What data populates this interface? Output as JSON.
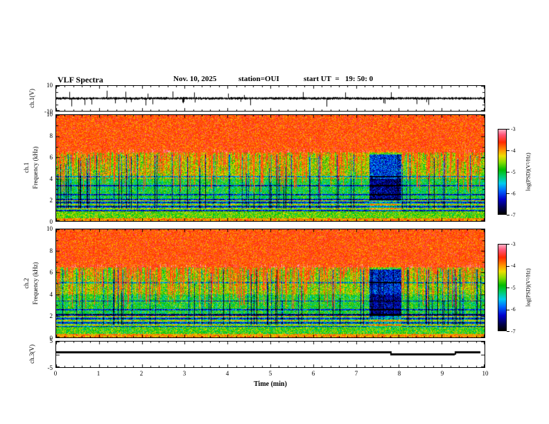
{
  "header": {
    "title": "VLF Spectra",
    "date": "Nov. 10, 2025",
    "station": "station=OUI",
    "start_ut": "start UT  =   19: 50: 0"
  },
  "x_axis": {
    "label": "Time (min)",
    "range": [
      0,
      10
    ],
    "ticks": [
      0,
      1,
      2,
      3,
      4,
      5,
      6,
      7,
      8,
      9,
      10
    ]
  },
  "colorbar": {
    "label": "log(PSD)(V²/Hz)",
    "range": [
      -7,
      -3
    ],
    "ticks": [
      -3,
      -4,
      -5,
      -6,
      -7
    ],
    "stops": [
      {
        "v": -7.0,
        "c": "#000000"
      },
      {
        "v": -6.7,
        "c": "#00004d"
      },
      {
        "v": -6.3,
        "c": "#0000cc"
      },
      {
        "v": -5.9,
        "c": "#0066ff"
      },
      {
        "v": -5.55,
        "c": "#00ccee"
      },
      {
        "v": -5.2,
        "c": "#00cc66"
      },
      {
        "v": -4.9,
        "c": "#00bb00"
      },
      {
        "v": -4.55,
        "c": "#88dd00"
      },
      {
        "v": -4.25,
        "c": "#eedd00"
      },
      {
        "v": -4.0,
        "c": "#ff9900"
      },
      {
        "v": -3.6,
        "c": "#ff2a00"
      },
      {
        "v": -3.25,
        "c": "#ff5577"
      },
      {
        "v": -3.0,
        "c": "#ffb3c6"
      }
    ]
  },
  "chart_data": [
    {
      "type": "line",
      "name": "ch1-voltage-waveform",
      "ylabel": "ch.1(V)",
      "ylim": [
        -10,
        10
      ],
      "yticks": [
        10,
        -10
      ],
      "xlim": [
        0,
        10
      ],
      "summary": "Broadband noise around 0 V of roughly ±1.5 V with intermittent impulsive spikes reaching toward ±8 V throughout the 10-minute record.",
      "signal": {
        "seed": 5,
        "noise_v": 1.15,
        "spike_probability": 0.05,
        "spike_v": 5.5
      }
    },
    {
      "type": "heatmap",
      "name": "ch1-spectrogram",
      "ylabel_channel": "ch.1",
      "ylabel_axis": "Frequency (kHz)",
      "ylim": [
        0,
        10
      ],
      "yticks": [
        10,
        8,
        6,
        4,
        2,
        0
      ],
      "xlim": [
        0,
        10
      ],
      "value_label": "log(PSD)(V²/Hz)",
      "value_range": [
        -7,
        -3
      ],
      "summary": "Intense activity (log PSD near -3.5) above ~6.5 kHz for the whole record; dense vertical impulsive streaks extending down to 2-4 kHz; green mid band near -5; horizontally banded structure below 2 kHz; relative quiescence (blue/dark) at 2-6 kHz near 7.3-8.0 min; hot band at the lowest frequencies.",
      "texture": {
        "seed": 11,
        "bands": [
          {
            "f": [
              6.5,
              10.2
            ],
            "psd": -3.6,
            "noise": 0.35
          },
          {
            "f": [
              4.0,
              6.5
            ],
            "psd": -4.5,
            "noise": 0.55
          },
          {
            "f": [
              2.0,
              4.0
            ],
            "psd": -5.05,
            "noise": 0.45
          },
          {
            "f": [
              0.95,
              2.0
            ],
            "psd": -5.35,
            "noise": 0.5,
            "banded": true
          },
          {
            "f": [
              0.3,
              0.95
            ],
            "psd": -4.7,
            "noise": 0.45
          },
          {
            "f": [
              0.0,
              0.3
            ],
            "psd": -3.95,
            "noise": 0.4
          }
        ],
        "streaks": {
          "active_fraction": 0.55,
          "dark_fraction": 0.1
        },
        "quiet_interval": [
          7.3,
          8.05
        ],
        "horizontal_lines": [
          2.05,
          2.5,
          3.35,
          4.2
        ]
      }
    },
    {
      "type": "heatmap",
      "name": "ch2-spectrogram",
      "ylabel_channel": "ch.2",
      "ylabel_axis": "Frequency (kHz)",
      "ylim": [
        0,
        10
      ],
      "yticks": [
        10,
        8,
        6,
        4,
        2,
        0
      ],
      "xlim": [
        0,
        10
      ],
      "value_label": "log(PSD)(V²/Hz)",
      "value_range": [
        -7,
        -3
      ],
      "summary": "Similar to ch.1: red broadband region above ~6.5 kHz, vertical streaks through the mid band, banded low-frequency structure below ~2.3 kHz, quiet blue interval near 7.3-8.0 min with warm patches near 1-2 kHz.",
      "texture": {
        "seed": 29,
        "bands": [
          {
            "f": [
              6.5,
              10.2
            ],
            "psd": -3.6,
            "noise": 0.35
          },
          {
            "f": [
              4.0,
              6.5
            ],
            "psd": -4.6,
            "noise": 0.55
          },
          {
            "f": [
              2.2,
              4.0
            ],
            "psd": -5.0,
            "noise": 0.45
          },
          {
            "f": [
              1.0,
              2.2
            ],
            "psd": -5.3,
            "noise": 0.5,
            "banded": true
          },
          {
            "f": [
              0.35,
              1.0
            ],
            "psd": -4.8,
            "noise": 0.5
          },
          {
            "f": [
              0.0,
              0.35
            ],
            "psd": -4.0,
            "noise": 0.45
          }
        ],
        "streaks": {
          "active_fraction": 0.55,
          "dark_fraction": 0.1
        },
        "quiet_interval": [
          7.3,
          8.05
        ],
        "horizontal_lines": [
          2.1,
          2.6,
          3.4,
          5.1
        ]
      }
    },
    {
      "type": "line",
      "name": "ch3-voltage-level",
      "ylabel": "ch.3(V)",
      "ylim": [
        -5,
        5
      ],
      "yticks": [
        5,
        -5
      ],
      "xlim": [
        0,
        10
      ],
      "summary": "Thick flat trace near 1 V for most of the record, stepping slightly lower between about 7.8 and 9.3 min, then returning to the original level until about 9.9 min.",
      "segments": [
        {
          "t0": 0,
          "t1": 7.8,
          "v": 1.0
        },
        {
          "t0": 7.8,
          "t1": 9.3,
          "v": 0.15
        },
        {
          "t0": 9.3,
          "t1": 9.9,
          "v": 1.0
        }
      ]
    }
  ]
}
